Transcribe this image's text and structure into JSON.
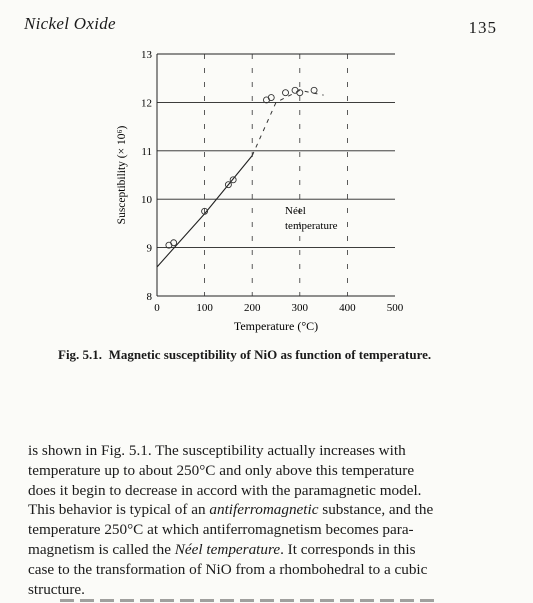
{
  "header": {
    "running_head": "Nickel Oxide",
    "page_number": "135"
  },
  "figure": {
    "caption_label": "Fig. 5.1.",
    "caption_text": "Magnetic susceptibility of NiO as function of temperature.",
    "annotation_line1": "Néel",
    "annotation_line2": "temperature"
  },
  "chart_data": {
    "type": "line",
    "title": "",
    "xlabel": "Temperature (°C)",
    "ylabel": "Susceptibility (× 10⁶)",
    "xlim": [
      0,
      500
    ],
    "ylim": [
      8,
      13
    ],
    "xticks": [
      0,
      100,
      200,
      300,
      400,
      500
    ],
    "yticks": [
      8,
      9,
      10,
      11,
      12,
      13
    ],
    "grid": "horizontal lines at each y tick; dashed vertical lines at x ticks",
    "series": [
      {
        "style": "solid-line",
        "x": [
          0,
          100,
          200
        ],
        "y": [
          8.6,
          9.7,
          10.9
        ]
      },
      {
        "style": "dashed-line",
        "x": [
          200,
          250,
          300,
          350
        ],
        "y": [
          10.9,
          12.0,
          12.25,
          12.15
        ]
      },
      {
        "style": "open-circle-markers",
        "x": [
          25,
          35,
          100,
          150,
          160,
          230,
          240,
          270,
          290,
          300,
          330
        ],
        "y": [
          9.05,
          9.1,
          9.75,
          10.3,
          10.4,
          12.05,
          12.1,
          12.2,
          12.25,
          12.2,
          12.25
        ]
      }
    ]
  },
  "body": {
    "paragraph_lines": [
      "is shown in Fig. 5.1.  The susceptibility actually increases with",
      "temperature up to about 250°C and only above this temperature",
      "does it begin to decrease in accord with the paramagnetic model.",
      "This behavior is typical of an antiferromagnetic substance, and the",
      "temperature 250°C at which antiferromagnetism becomes para-",
      "magnetism is called the Néel temperature.  It corresponds in this",
      "case to the transformation of NiO from a rhombohedral to a cubic",
      "structure."
    ]
  }
}
